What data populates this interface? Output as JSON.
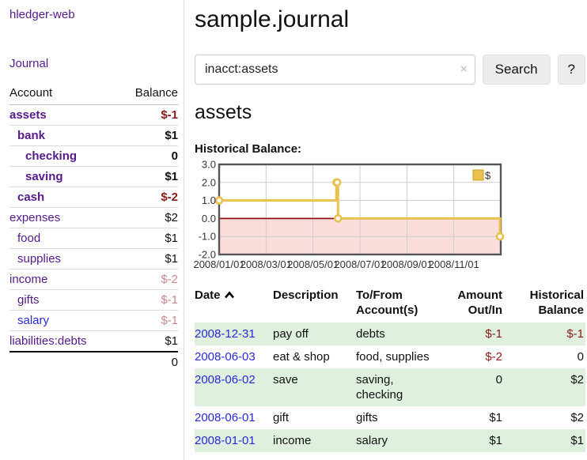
{
  "app": {
    "brand": "hledger-web",
    "nav_journal": "Journal"
  },
  "colors": {
    "brand_purple": "#551a8b",
    "link_blue": "#2a2ad6",
    "neg_strong": "#8b1a1a",
    "neg_soft": "#c98b8b",
    "row_green": "#dff0df",
    "chart_line": "#e9c24d",
    "chart_negative_fill": "#fbdedb",
    "chart_zero_line": "#8b0000"
  },
  "sidebar": {
    "header": {
      "account": "Account",
      "balance": "Balance"
    },
    "accounts": [
      {
        "name": "assets",
        "indent": 0,
        "bold": true,
        "balance": "$-1",
        "neg": "strong",
        "link": "purple"
      },
      {
        "name": "bank",
        "indent": 1,
        "bold": true,
        "balance": "$1",
        "neg": "none",
        "link": "purple"
      },
      {
        "name": "checking",
        "indent": 2,
        "bold": true,
        "balance": "0",
        "neg": "none",
        "link": "purple"
      },
      {
        "name": "saving",
        "indent": 2,
        "bold": true,
        "balance": "$1",
        "neg": "none",
        "link": "purple"
      },
      {
        "name": "cash",
        "indent": 1,
        "bold": true,
        "balance": "$-2",
        "neg": "strong",
        "link": "purple"
      },
      {
        "name": "expenses",
        "indent": 0,
        "bold": false,
        "balance": "$2",
        "neg": "none",
        "link": "purple"
      },
      {
        "name": "food",
        "indent": 1,
        "bold": false,
        "balance": "$1",
        "neg": "none",
        "link": "purple"
      },
      {
        "name": "supplies",
        "indent": 1,
        "bold": false,
        "balance": "$1",
        "neg": "none",
        "link": "purple"
      },
      {
        "name": "income",
        "indent": 0,
        "bold": false,
        "balance": "$-2",
        "neg": "soft",
        "link": "purple"
      },
      {
        "name": "gifts",
        "indent": 1,
        "bold": false,
        "balance": "$-1",
        "neg": "soft",
        "link": "purple"
      },
      {
        "name": "salary",
        "indent": 1,
        "bold": false,
        "balance": "$-1",
        "neg": "soft",
        "link": "blue"
      },
      {
        "name": "liabilities:debts",
        "indent": 0,
        "bold": false,
        "balance": "$1",
        "neg": "none",
        "link": "purple"
      }
    ],
    "total": "0"
  },
  "header": {
    "title": "sample.journal"
  },
  "search": {
    "value": "inacct:assets",
    "clear_label": "×",
    "button": "Search",
    "help_button": "?"
  },
  "register": {
    "heading": "assets",
    "chart_label": "Historical Balance:",
    "table": {
      "headers": [
        {
          "key": "date",
          "lines": [
            "Date"
          ],
          "align": "left",
          "sortable": true
        },
        {
          "key": "description",
          "lines": [
            "Description"
          ],
          "align": "left",
          "sortable": false
        },
        {
          "key": "accounts",
          "lines": [
            "To/From",
            "Account(s)"
          ],
          "align": "left",
          "sortable": false
        },
        {
          "key": "amount",
          "lines": [
            "Amount",
            "Out/In"
          ],
          "align": "right",
          "sortable": false
        },
        {
          "key": "balance",
          "lines": [
            "Historical",
            "Balance"
          ],
          "align": "right",
          "sortable": false
        }
      ],
      "rows": [
        {
          "date": "2008-12-31",
          "description": "pay off",
          "accounts": "debts",
          "amount": "$-1",
          "balance": "$-1",
          "shaded": true
        },
        {
          "date": "2008-06-03",
          "description": "eat & shop",
          "accounts": "food, supplies",
          "amount": "$-2",
          "balance": "0",
          "shaded": false
        },
        {
          "date": "2008-06-02",
          "description": "save",
          "accounts": "saving, checking",
          "amount": "0",
          "balance": "$2",
          "shaded": true
        },
        {
          "date": "2008-06-01",
          "description": "gift",
          "accounts": "gifts",
          "amount": "$1",
          "balance": "$2",
          "shaded": false
        },
        {
          "date": "2008-01-01",
          "description": "income",
          "accounts": "salary",
          "amount": "$1",
          "balance": "$1",
          "shaded": true
        }
      ]
    }
  },
  "chart_data": {
    "type": "line",
    "style": "step",
    "title": "Historical Balance:",
    "legend": [
      "$"
    ],
    "legend_position": "top-right",
    "series": [
      {
        "name": "$",
        "points": [
          [
            "2008-01-01",
            1
          ],
          [
            "2008-06-01",
            2
          ],
          [
            "2008-06-02",
            2
          ],
          [
            "2008-06-03",
            0
          ],
          [
            "2008-12-31",
            -1
          ]
        ]
      }
    ],
    "x_range": [
      "2008-01-01",
      "2009-01-01"
    ],
    "x_ticks": [
      "2008/01/01",
      "2008/03/01",
      "2008/05/01",
      "2008/07/01",
      "2008/09/01",
      "2008/11/01"
    ],
    "y_ticks": [
      "3.0",
      "2.0",
      "1.0",
      "0.0",
      "-1.0",
      "-2.0"
    ],
    "ylim": [
      -2,
      3
    ],
    "grid": true,
    "negative_region_shaded": true
  }
}
